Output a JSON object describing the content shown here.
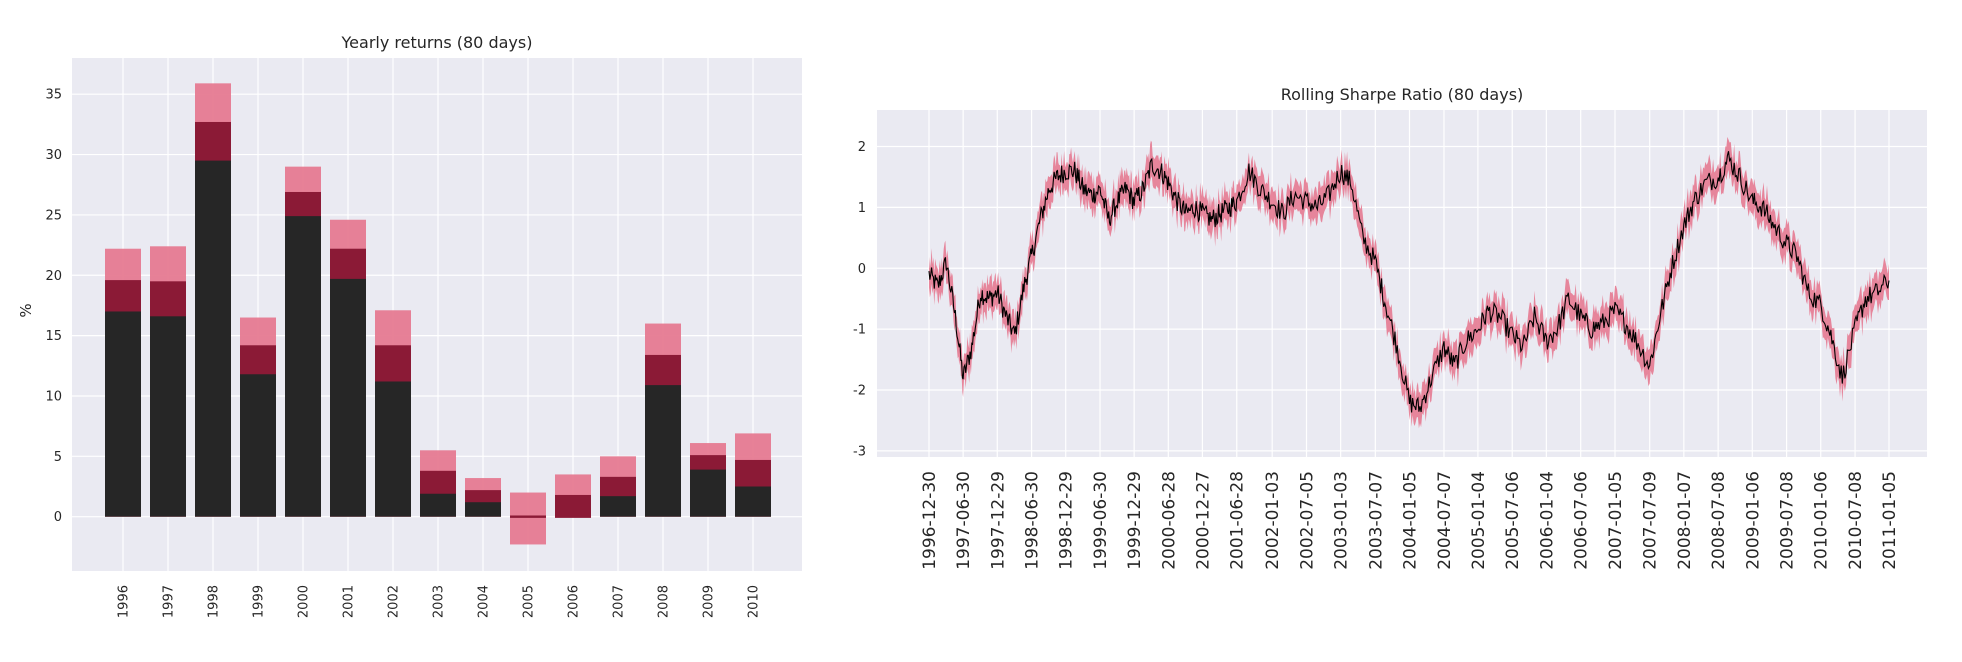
{
  "chart_data": [
    {
      "type": "bar",
      "title": "Yearly returns (80 days)",
      "xlabel": "",
      "ylabel": "%",
      "ylim": [
        -4.5,
        38
      ],
      "yticks": [
        0,
        5,
        10,
        15,
        20,
        25,
        30,
        35
      ],
      "grid": true,
      "categories": [
        "1996",
        "1997",
        "1998",
        "1999",
        "2000",
        "2001",
        "2002",
        "2003",
        "2004",
        "2005",
        "2006",
        "2007",
        "2008",
        "2009",
        "2010"
      ],
      "median": [
        17.0,
        16.6,
        29.5,
        11.8,
        24.9,
        19.7,
        11.2,
        1.9,
        1.2,
        -0.1,
        0.0,
        1.7,
        10.9,
        3.9,
        2.5
      ],
      "inner_upper": [
        19.6,
        19.5,
        32.7,
        14.2,
        26.9,
        22.2,
        14.2,
        3.8,
        2.2,
        0.0,
        1.8,
        3.3,
        13.4,
        5.1,
        4.7
      ],
      "outer_lower": [
        0.0,
        0.0,
        0.0,
        0.0,
        0.0,
        0.0,
        0.0,
        0.0,
        0.0,
        -2.3,
        0.0,
        0.0,
        0.0,
        0.0,
        0.0
      ],
      "outer_upper": [
        22.2,
        22.4,
        35.9,
        16.5,
        29.0,
        24.6,
        17.1,
        5.5,
        3.2,
        2.0,
        3.5,
        5.0,
        16.0,
        6.1,
        6.9
      ],
      "colors": {
        "median": "#262626",
        "inner": "#8b1a36",
        "outer": "#e67a91",
        "background": "#eaeaf2"
      }
    },
    {
      "type": "line",
      "title": "Rolling Sharpe Ratio (80 days)",
      "xlabel": "",
      "ylabel": "",
      "ylim": [
        -3.1,
        2.6
      ],
      "yticks": [
        -3,
        -2,
        -1,
        0,
        1,
        2
      ],
      "grid": true,
      "xticks": [
        "1996-12-30",
        "1997-06-30",
        "1997-12-29",
        "1998-06-30",
        "1998-12-29",
        "1999-06-30",
        "1999-12-29",
        "2000-06-28",
        "2000-12-27",
        "2001-06-28",
        "2002-01-03",
        "2002-07-05",
        "2003-01-03",
        "2003-07-07",
        "2004-01-05",
        "2004-07-07",
        "2005-01-04",
        "2005-07-06",
        "2006-01-04",
        "2006-07-06",
        "2007-01-05",
        "2007-07-09",
        "2008-01-07",
        "2008-07-08",
        "2009-01-06",
        "2009-07-08",
        "2010-01-06",
        "2010-07-08",
        "2011-01-05"
      ],
      "series": [
        {
          "x": [
            "1996-12-30",
            "1997-02-15",
            "1997-04-01",
            "1997-05-20",
            "1997-06-30",
            "1997-08-15",
            "1997-10-01",
            "1997-11-15",
            "1997-12-29",
            "1998-02-15",
            "1998-04-01",
            "1998-05-20",
            "1998-06-30",
            "1998-08-15",
            "1998-10-01",
            "1998-11-15",
            "1998-12-29",
            "1999-02-15",
            "1999-04-01",
            "1999-05-20",
            "1999-06-30",
            "1999-08-15",
            "1999-10-01",
            "1999-11-15",
            "1999-12-29",
            "2000-02-15",
            "2000-04-01",
            "2000-05-20",
            "2000-06-28",
            "2000-08-15",
            "2000-10-01",
            "2000-11-15",
            "2000-12-27",
            "2001-02-15",
            "2001-04-01",
            "2001-05-20",
            "2001-06-28",
            "2001-09-01",
            "2001-11-01",
            "2002-01-03",
            "2002-03-01",
            "2002-05-01",
            "2002-07-05",
            "2002-09-01",
            "2002-11-01",
            "2003-01-03",
            "2003-03-01",
            "2003-05-01",
            "2003-07-07",
            "2003-09-01",
            "2003-11-01",
            "2004-01-05",
            "2004-03-01",
            "2004-05-01",
            "2004-07-07",
            "2004-09-01",
            "2004-11-01",
            "2005-01-04",
            "2005-03-01",
            "2005-05-01",
            "2005-07-06",
            "2005-09-01",
            "2005-11-01",
            "2006-01-04",
            "2006-03-01",
            "2006-05-01",
            "2006-07-06",
            "2006-09-01",
            "2006-11-01",
            "2007-01-05",
            "2007-03-01",
            "2007-05-01",
            "2007-07-09",
            "2007-09-01",
            "2007-11-01",
            "2008-01-07",
            "2008-03-01",
            "2008-05-01",
            "2008-07-08",
            "2008-09-01",
            "2008-11-01",
            "2009-01-06",
            "2009-03-01",
            "2009-05-01",
            "2009-07-08",
            "2009-09-01",
            "2009-11-01",
            "2010-01-06",
            "2010-03-01",
            "2010-05-01",
            "2010-07-08",
            "2010-09-01",
            "2010-11-01",
            "2011-01-05"
          ],
          "y": [
            -0.1,
            -0.3,
            0.1,
            -0.8,
            -1.8,
            -1.3,
            -0.4,
            -0.5,
            -0.4,
            -0.8,
            -1.1,
            -0.3,
            0.2,
            0.8,
            1.3,
            1.5,
            1.6,
            1.6,
            1.3,
            1.2,
            1.3,
            0.8,
            1.1,
            1.3,
            1.1,
            1.3,
            1.7,
            1.6,
            1.4,
            1.1,
            0.9,
            1.0,
            0.9,
            0.8,
            0.9,
            1.0,
            1.1,
            1.6,
            1.3,
            1.1,
            0.9,
            1.2,
            1.1,
            1.0,
            1.2,
            1.6,
            1.4,
            0.5,
            0.1,
            -0.6,
            -1.3,
            -2.2,
            -2.3,
            -1.8,
            -1.3,
            -1.6,
            -1.2,
            -1.0,
            -0.7,
            -0.8,
            -1.1,
            -1.3,
            -0.8,
            -1.2,
            -1.0,
            -0.5,
            -0.8,
            -1.0,
            -0.9,
            -0.7,
            -0.9,
            -1.2,
            -1.6,
            -0.8,
            0.0,
            0.7,
            1.1,
            1.4,
            1.5,
            1.8,
            1.5,
            1.1,
            1.0,
            0.7,
            0.4,
            0.2,
            -0.4,
            -0.6,
            -1.1,
            -1.8,
            -1.0,
            -0.5,
            -0.4,
            -0.2
          ]
        }
      ],
      "band_half_width": 0.25,
      "colors": {
        "line": "#000000",
        "band": "#e67a91",
        "background": "#eaeaf2"
      }
    }
  ]
}
